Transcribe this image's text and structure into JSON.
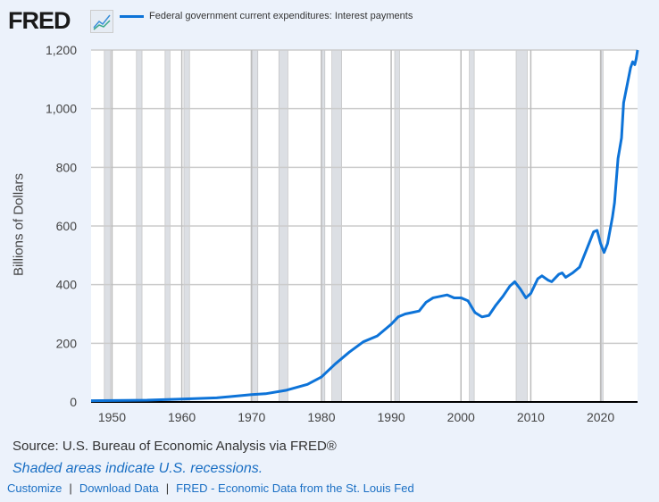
{
  "header": {
    "logo": "FRED",
    "logo_icon": "line-chart-icon"
  },
  "chart_data": {
    "type": "line",
    "title": "",
    "ylabel": "Billions of Dollars",
    "xlabel": "",
    "xlim": [
      1947,
      2025.3
    ],
    "ylim": [
      0,
      1200
    ],
    "grid": true,
    "legend_position": "top",
    "xticks": [
      1950,
      1960,
      1970,
      1980,
      1990,
      2000,
      2010,
      2020
    ],
    "yticks": [
      0,
      200,
      400,
      600,
      800,
      1000,
      1200
    ],
    "ytick_labels": [
      "0",
      "200",
      "400",
      "600",
      "800",
      "1,000",
      "1,200"
    ],
    "series": [
      {
        "name": "Federal government current expenditures: Interest payments",
        "color": "#0d73d8",
        "x": [
          1947,
          1950,
          1955,
          1960,
          1965,
          1970,
          1972,
          1975,
          1978,
          1980,
          1982,
          1984,
          1986,
          1988,
          1990,
          1991,
          1992,
          1993,
          1994,
          1995,
          1996,
          1997,
          1998,
          1999,
          2000,
          2001,
          2002,
          2003,
          2004,
          2005,
          2006,
          2007,
          2007.7,
          2008.5,
          2009.3,
          2010,
          2011,
          2011.6,
          2012.5,
          2013,
          2014,
          2014.5,
          2015,
          2016,
          2017,
          2018,
          2019,
          2019.5,
          2020,
          2020.5,
          2021,
          2021.7,
          2022,
          2022.5,
          2023,
          2023.3,
          2023.8,
          2024.3,
          2024.6,
          2024.9,
          2025.1,
          2025.3
        ],
        "y": [
          4,
          5,
          6,
          10,
          14,
          25,
          28,
          40,
          60,
          85,
          130,
          170,
          205,
          225,
          265,
          290,
          300,
          305,
          310,
          340,
          355,
          360,
          365,
          355,
          355,
          345,
          305,
          290,
          295,
          330,
          360,
          395,
          410,
          385,
          355,
          370,
          420,
          430,
          415,
          410,
          435,
          440,
          425,
          440,
          460,
          520,
          580,
          585,
          540,
          510,
          540,
          630,
          680,
          830,
          900,
          1020,
          1080,
          1140,
          1160,
          1150,
          1170,
          1200
        ]
      }
    ],
    "recessions": [
      [
        1948.9,
        1949.8
      ],
      [
        1953.5,
        1954.3
      ],
      [
        1957.6,
        1958.3
      ],
      [
        1960.3,
        1961.1
      ],
      [
        1969.9,
        1970.9
      ],
      [
        1973.9,
        1975.2
      ],
      [
        1980.0,
        1980.5
      ],
      [
        1981.5,
        1982.9
      ],
      [
        1990.5,
        1991.2
      ],
      [
        2001.2,
        2001.9
      ],
      [
        2007.9,
        2009.5
      ],
      [
        2020.1,
        2020.3
      ]
    ]
  },
  "footer": {
    "source": "Source: U.S. Bureau of Economic Analysis via FRED®",
    "shaded_note": "Shaded areas indicate U.S. recessions.",
    "links": [
      "Customize",
      "Download Data",
      "FRED - Economic Data from the St. Louis Fed"
    ],
    "separator": "|"
  }
}
